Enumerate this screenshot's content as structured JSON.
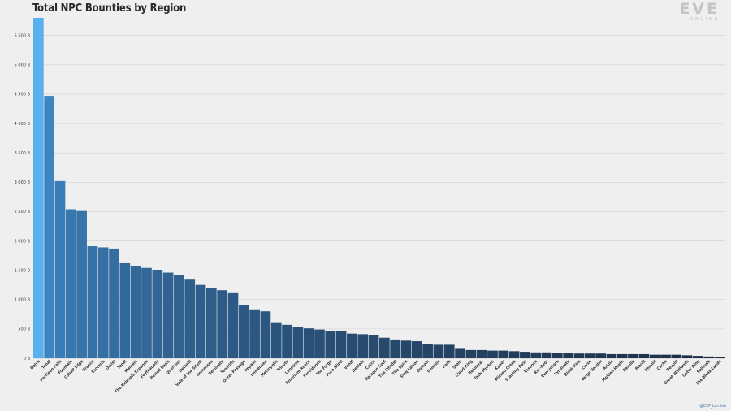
{
  "chart_data": {
    "type": "bar",
    "title": "Total NPC Bounties by Region",
    "xlabel": "",
    "ylabel": "",
    "ylim": [
      0,
      5800
    ],
    "yticks": [
      0,
      500,
      1000,
      1500,
      2000,
      2500,
      3000,
      3500,
      4000,
      4500,
      5000,
      5500
    ],
    "ytick_labels": [
      "0 B",
      "500 B",
      "1 000 B",
      "1 500 B",
      "2 000 B",
      "2 500 B",
      "3 000 B",
      "3 500 B",
      "4 000 B",
      "4 500 B",
      "5 000 B",
      "5 500 B"
    ],
    "grid": true,
    "colors": {
      "first": "#5ab0ef",
      "second": "#3d85c2",
      "last": "#1c2d45"
    },
    "categories": [
      "Delve",
      "Tenal",
      "Perrigen Falls",
      "Fountain",
      "Cobalt Edge",
      "Branch",
      "Esoteria",
      "Omist",
      "Tenal",
      "Malpais",
      "The Kalevala Expanse",
      "Feythabolis",
      "Period Basis",
      "Querious",
      "Detorid",
      "Vale of the Silent",
      "Immensea",
      "Geminate",
      "Tenerifis",
      "Outer Passage",
      "Impass",
      "Immensea",
      "Metropolis",
      "Tribute",
      "Lonetrek",
      "Etherium Reach",
      "Providence",
      "The Forge",
      "Pure Blind",
      "Venal",
      "Deklein",
      "Catch",
      "Paragon Soul",
      "The Citadel",
      "The Spire",
      "Sinq Laison",
      "Domain",
      "Genesis",
      "Fade",
      "Stain",
      "Cloud Ring",
      "Heimatar",
      "Tash-Murkon",
      "Kador",
      "Wicked Creek",
      "Scalding Pass",
      "Essence",
      "Kor-Azor",
      "Everyshore",
      "Syndicate",
      "Black Rise",
      "Curse",
      "Verge Vendor",
      "Aridia",
      "Molden Heath",
      "Derelik",
      "Placid",
      "Khanid",
      "Cache",
      "Devoid",
      "Great Wildlands",
      "Outer Ring",
      "Solitude",
      "The Bleak Lands"
    ],
    "values": [
      5800,
      4470,
      3020,
      2540,
      2510,
      1910,
      1890,
      1870,
      1620,
      1570,
      1540,
      1500,
      1460,
      1420,
      1340,
      1250,
      1200,
      1160,
      1110,
      910,
      820,
      800,
      600,
      570,
      530,
      510,
      490,
      470,
      460,
      420,
      410,
      400,
      350,
      320,
      300,
      290,
      240,
      230,
      230,
      160,
      140,
      140,
      130,
      130,
      120,
      110,
      100,
      100,
      90,
      90,
      80,
      80,
      80,
      70,
      70,
      70,
      70,
      60,
      60,
      60,
      50,
      40,
      30,
      20
    ]
  },
  "logo": {
    "main": "EVE",
    "sub": "ONLINE"
  },
  "credit": "@CCP_Larrikin"
}
